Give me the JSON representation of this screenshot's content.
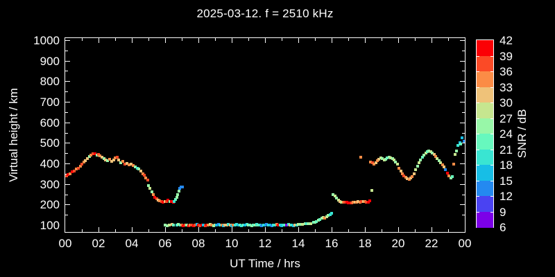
{
  "title": "2025-03-12. f = 2510 kHz",
  "axes": {
    "x_label": "UT Time / hrs",
    "y_label": "Virtual height / km",
    "x_tick_labels": [
      "00",
      "02",
      "04",
      "06",
      "08",
      "10",
      "12",
      "14",
      "16",
      "18",
      "20",
      "22",
      "00"
    ],
    "y_tick_labels": [
      "100",
      "200",
      "300",
      "400",
      "500",
      "600",
      "700",
      "800",
      "900",
      "1000"
    ]
  },
  "colorbar": {
    "label": "SNR / dB",
    "tick_labels": [
      "42",
      "39",
      "36",
      "33",
      "30",
      "27",
      "24",
      "21",
      "18",
      "15",
      "12",
      "9",
      "6"
    ],
    "bin_colors_low_to_high": [
      "#7C00E8",
      "#4A43F2",
      "#2489F0",
      "#17BEE6",
      "#39E5D2",
      "#67F8BE",
      "#98F7A8",
      "#C6E68F",
      "#EFC279",
      "#FB8C46",
      "#FB4A26",
      "#FB0005"
    ],
    "bin_bounds_db": [
      6,
      9,
      12,
      15,
      18,
      21,
      24,
      27,
      30,
      33,
      36,
      39,
      42
    ]
  },
  "chart_data": {
    "type": "scatter",
    "title": "2025-03-12. f = 2510 kHz",
    "xlabel": "UT Time / hrs",
    "ylabel": "Virtual height / km",
    "zlabel": "SNR / dB",
    "xlim": [
      0,
      24
    ],
    "ylim": [
      100,
      1000
    ],
    "zlim": [
      6,
      42
    ],
    "grid": false,
    "point_format": [
      "ut_hours",
      "virtual_height_km",
      "snr_db_bin_low"
    ],
    "points": [
      [
        0.08,
        338,
        36
      ],
      [
        0.17,
        345,
        39
      ],
      [
        0.3,
        350,
        33
      ],
      [
        0.42,
        358,
        39
      ],
      [
        0.55,
        362,
        36
      ],
      [
        0.67,
        372,
        33
      ],
      [
        0.78,
        378,
        36
      ],
      [
        0.9,
        388,
        33
      ],
      [
        1.0,
        398,
        36
      ],
      [
        1.12,
        408,
        33
      ],
      [
        1.22,
        415,
        30
      ],
      [
        1.33,
        425,
        30
      ],
      [
        1.45,
        435,
        24
      ],
      [
        1.55,
        442,
        33
      ],
      [
        1.65,
        446,
        36
      ],
      [
        1.78,
        448,
        39
      ],
      [
        1.9,
        441,
        24
      ],
      [
        2.0,
        443,
        36
      ],
      [
        2.1,
        436,
        33
      ],
      [
        2.2,
        430,
        30
      ],
      [
        2.32,
        424,
        24
      ],
      [
        2.42,
        418,
        30
      ],
      [
        2.55,
        414,
        24
      ],
      [
        2.65,
        420,
        33
      ],
      [
        2.78,
        411,
        30
      ],
      [
        2.9,
        416,
        30
      ],
      [
        3.0,
        426,
        33
      ],
      [
        3.12,
        429,
        36
      ],
      [
        3.22,
        416,
        30
      ],
      [
        3.35,
        405,
        24
      ],
      [
        3.45,
        411,
        33
      ],
      [
        3.58,
        396,
        36
      ],
      [
        3.7,
        399,
        30
      ],
      [
        3.82,
        392,
        33
      ],
      [
        3.95,
        398,
        30
      ],
      [
        4.08,
        390,
        33
      ],
      [
        4.2,
        384,
        24
      ],
      [
        4.32,
        376,
        18
      ],
      [
        4.42,
        372,
        24
      ],
      [
        4.55,
        362,
        30
      ],
      [
        4.65,
        350,
        33
      ],
      [
        4.75,
        342,
        36
      ],
      [
        4.85,
        330,
        33
      ],
      [
        4.95,
        318,
        36
      ],
      [
        5.02,
        292,
        24
      ],
      [
        5.1,
        278,
        27
      ],
      [
        5.2,
        262,
        24
      ],
      [
        5.28,
        248,
        33
      ],
      [
        5.38,
        236,
        39
      ],
      [
        5.48,
        228,
        36
      ],
      [
        5.58,
        222,
        30
      ],
      [
        5.68,
        218,
        33
      ],
      [
        5.78,
        214,
        36
      ],
      [
        5.88,
        212,
        39
      ],
      [
        5.98,
        216,
        30
      ],
      [
        6.08,
        214,
        36
      ],
      [
        6.18,
        220,
        39
      ],
      [
        6.28,
        216,
        24
      ],
      [
        6.38,
        213,
        39
      ],
      [
        6.48,
        210,
        39
      ],
      [
        6.55,
        216,
        18
      ],
      [
        6.62,
        224,
        21
      ],
      [
        6.7,
        236,
        24
      ],
      [
        6.76,
        250,
        24
      ],
      [
        6.82,
        266,
        24
      ],
      [
        6.88,
        280,
        12
      ],
      [
        6.96,
        286,
        12
      ],
      [
        7.04,
        284,
        12
      ],
      [
        6.0,
        100,
        24
      ],
      [
        6.12,
        98,
        24
      ],
      [
        6.25,
        100,
        27
      ],
      [
        6.4,
        102,
        30
      ],
      [
        6.5,
        100,
        21
      ],
      [
        6.7,
        100,
        18
      ],
      [
        6.8,
        102,
        24
      ],
      [
        6.9,
        100,
        21
      ],
      [
        7.0,
        100,
        33
      ],
      [
        7.1,
        98,
        39
      ],
      [
        7.2,
        100,
        36
      ],
      [
        7.3,
        100,
        24
      ],
      [
        7.4,
        98,
        39
      ],
      [
        7.5,
        100,
        33
      ],
      [
        7.6,
        100,
        36
      ],
      [
        7.7,
        98,
        39
      ],
      [
        7.8,
        100,
        36
      ],
      [
        7.9,
        102,
        15
      ],
      [
        8.0,
        100,
        39
      ],
      [
        8.1,
        98,
        36
      ],
      [
        8.2,
        100,
        39
      ],
      [
        8.3,
        100,
        15
      ],
      [
        8.4,
        98,
        36
      ],
      [
        8.5,
        100,
        39
      ],
      [
        8.6,
        100,
        33
      ],
      [
        8.7,
        102,
        27
      ],
      [
        8.8,
        100,
        33
      ],
      [
        8.9,
        98,
        24
      ],
      [
        9.0,
        100,
        27
      ],
      [
        9.1,
        100,
        15
      ],
      [
        9.2,
        102,
        12
      ],
      [
        9.3,
        100,
        18
      ],
      [
        9.4,
        100,
        33
      ],
      [
        9.5,
        98,
        15
      ],
      [
        9.6,
        100,
        30
      ],
      [
        9.7,
        100,
        30
      ],
      [
        9.8,
        102,
        18
      ],
      [
        9.9,
        100,
        30
      ],
      [
        10.0,
        98,
        15
      ],
      [
        10.1,
        100,
        33
      ],
      [
        10.2,
        100,
        18
      ],
      [
        10.3,
        102,
        18
      ],
      [
        10.4,
        100,
        15
      ],
      [
        10.5,
        100,
        21
      ],
      [
        10.6,
        98,
        18
      ],
      [
        10.7,
        100,
        21
      ],
      [
        10.8,
        100,
        15
      ],
      [
        10.9,
        102,
        18
      ],
      [
        11.0,
        100,
        24
      ],
      [
        11.1,
        100,
        21
      ],
      [
        11.2,
        98,
        24
      ],
      [
        11.3,
        100,
        21
      ],
      [
        11.4,
        100,
        24
      ],
      [
        11.5,
        102,
        18
      ],
      [
        11.6,
        100,
        21
      ],
      [
        11.7,
        100,
        18
      ],
      [
        11.8,
        98,
        12
      ],
      [
        11.9,
        100,
        18
      ],
      [
        12.0,
        100,
        15
      ],
      [
        12.1,
        102,
        12
      ],
      [
        12.2,
        100,
        18
      ],
      [
        12.3,
        100,
        15
      ],
      [
        12.4,
        98,
        12
      ],
      [
        12.5,
        100,
        18
      ],
      [
        12.6,
        100,
        18
      ],
      [
        12.7,
        102,
        33
      ],
      [
        12.8,
        100,
        39
      ],
      [
        12.9,
        100,
        18
      ],
      [
        13.0,
        98,
        15
      ],
      [
        13.1,
        100,
        18
      ],
      [
        13.2,
        100,
        21
      ],
      [
        13.3,
        100,
        6
      ],
      [
        13.4,
        102,
        18
      ],
      [
        13.5,
        100,
        30
      ],
      [
        13.6,
        100,
        18
      ],
      [
        13.7,
        98,
        15
      ],
      [
        13.8,
        100,
        30
      ],
      [
        13.9,
        100,
        18
      ],
      [
        14.0,
        102,
        27
      ],
      [
        14.1,
        104,
        24
      ],
      [
        14.25,
        104,
        27
      ],
      [
        14.4,
        106,
        24
      ],
      [
        14.5,
        106,
        18
      ],
      [
        14.6,
        108,
        24
      ],
      [
        14.75,
        108,
        27
      ],
      [
        14.9,
        112,
        21
      ],
      [
        15.0,
        114,
        24
      ],
      [
        15.1,
        118,
        21
      ],
      [
        15.2,
        124,
        24
      ],
      [
        15.3,
        128,
        21
      ],
      [
        15.4,
        134,
        24
      ],
      [
        15.5,
        138,
        27
      ],
      [
        15.6,
        134,
        33
      ],
      [
        15.7,
        142,
        27
      ],
      [
        15.8,
        148,
        24
      ],
      [
        15.9,
        152,
        18
      ],
      [
        16.0,
        158,
        18
      ],
      [
        16.1,
        250,
        24
      ],
      [
        16.2,
        240,
        27
      ],
      [
        16.3,
        230,
        24
      ],
      [
        16.4,
        222,
        27
      ],
      [
        16.5,
        216,
        30
      ],
      [
        16.6,
        212,
        27
      ],
      [
        16.7,
        210,
        33
      ],
      [
        16.8,
        212,
        36
      ],
      [
        16.9,
        210,
        39
      ],
      [
        17.0,
        208,
        39
      ],
      [
        17.1,
        207,
        39
      ],
      [
        17.2,
        208,
        36
      ],
      [
        17.3,
        210,
        33
      ],
      [
        17.4,
        210,
        30
      ],
      [
        17.5,
        212,
        33
      ],
      [
        17.6,
        213,
        30
      ],
      [
        17.7,
        212,
        33
      ],
      [
        17.8,
        214,
        36
      ],
      [
        17.9,
        215,
        30
      ],
      [
        18.0,
        213,
        33
      ],
      [
        18.1,
        211,
        36
      ],
      [
        18.2,
        212,
        39
      ],
      [
        18.3,
        218,
        39
      ],
      [
        17.75,
        430,
        33
      ],
      [
        18.4,
        268,
        27
      ],
      [
        18.35,
        408,
        33
      ],
      [
        18.45,
        402,
        36
      ],
      [
        18.55,
        398,
        33
      ],
      [
        18.65,
        402,
        30
      ],
      [
        18.75,
        412,
        33
      ],
      [
        18.85,
        420,
        30
      ],
      [
        18.95,
        428,
        27
      ],
      [
        19.05,
        424,
        24
      ],
      [
        19.15,
        416,
        27
      ],
      [
        19.25,
        419,
        24
      ],
      [
        19.35,
        427,
        21
      ],
      [
        19.45,
        431,
        24
      ],
      [
        19.55,
        428,
        27
      ],
      [
        19.65,
        422,
        24
      ],
      [
        19.75,
        417,
        27
      ],
      [
        19.85,
        408,
        24
      ],
      [
        19.95,
        396,
        27
      ],
      [
        20.05,
        378,
        33
      ],
      [
        20.15,
        362,
        30
      ],
      [
        20.25,
        350,
        33
      ],
      [
        20.35,
        340,
        36
      ],
      [
        20.45,
        332,
        33
      ],
      [
        20.55,
        326,
        30
      ],
      [
        20.65,
        324,
        33
      ],
      [
        20.75,
        328,
        30
      ],
      [
        20.85,
        336,
        33
      ],
      [
        20.95,
        348,
        30
      ],
      [
        21.05,
        368,
        27
      ],
      [
        21.15,
        386,
        24
      ],
      [
        21.25,
        402,
        27
      ],
      [
        21.35,
        418,
        24
      ],
      [
        21.45,
        431,
        21
      ],
      [
        21.55,
        442,
        24
      ],
      [
        21.65,
        450,
        27
      ],
      [
        21.75,
        456,
        21
      ],
      [
        21.85,
        460,
        24
      ],
      [
        21.95,
        458,
        27
      ],
      [
        22.05,
        452,
        24
      ],
      [
        22.15,
        444,
        30
      ],
      [
        22.25,
        433,
        33
      ],
      [
        22.35,
        424,
        27
      ],
      [
        22.45,
        414,
        24
      ],
      [
        22.55,
        404,
        27
      ],
      [
        22.65,
        394,
        33
      ],
      [
        22.75,
        382,
        30
      ],
      [
        22.85,
        368,
        12
      ],
      [
        22.95,
        352,
        39
      ],
      [
        23.05,
        338,
        33
      ],
      [
        23.15,
        330,
        24
      ],
      [
        23.25,
        336,
        21
      ],
      [
        23.35,
        396,
        33
      ],
      [
        23.4,
        444,
        27
      ],
      [
        23.5,
        460,
        24
      ],
      [
        23.6,
        488,
        18
      ],
      [
        23.7,
        502,
        15
      ],
      [
        23.75,
        496,
        21
      ],
      [
        23.85,
        524,
        15
      ],
      [
        23.95,
        508,
        12
      ]
    ]
  }
}
